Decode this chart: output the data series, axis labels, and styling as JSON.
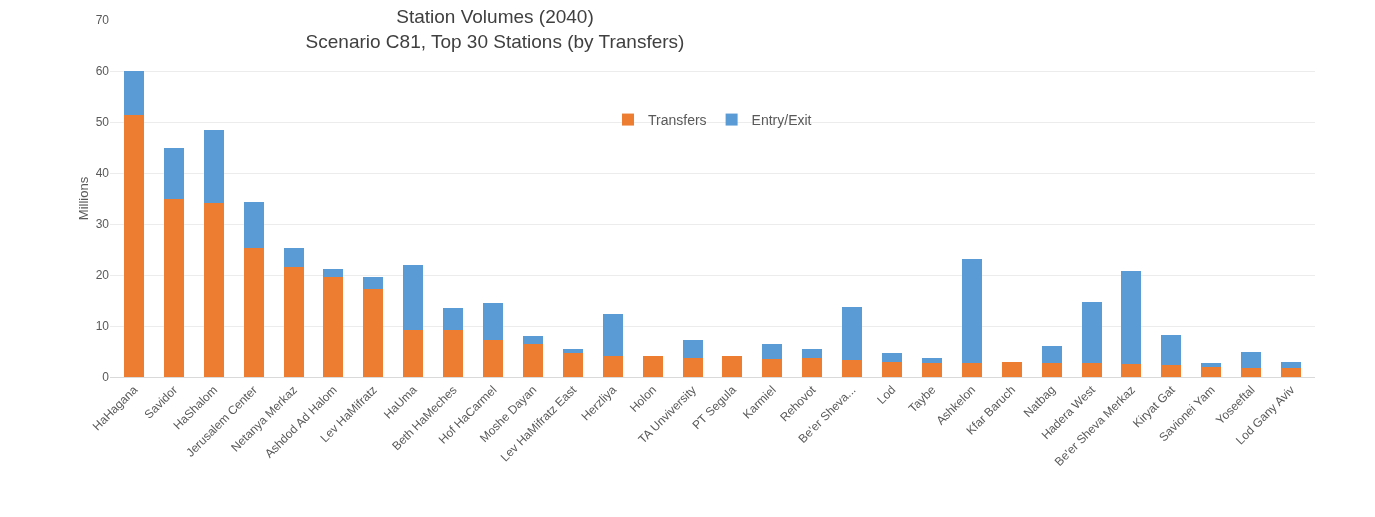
{
  "chart_data": {
    "type": "bar",
    "title": "Station Volumes (2040)",
    "subtitle": "Scenario C81, Top 30 Stations (by Transfers)",
    "ylabel": "Millions",
    "categories": [
      "HaHagana",
      "Savidor",
      "HaShalom",
      "Jerusalem Center",
      "Netanya Merkaz",
      "Ashdod Ad Halom",
      "Lev HaMifratz",
      "HaUma",
      "Beth HaMeches",
      "Hof HaCarmel",
      "Moshe Dayan",
      "Lev HaMifratz East",
      "Herzliya",
      "Holon",
      "TA Unviversity",
      "PT Segula",
      "Karmiel",
      "Rehovot",
      "Be'er Sheva...",
      "Lod",
      "Taybe",
      "Ashkelon",
      "Kfar Baruch",
      "Natbag",
      "Hadera West",
      "Be'er Sheva Merkaz",
      "Kiryat Gat",
      "Savionei Yam",
      "Yoseeftal",
      "Lod Gany Aviv"
    ],
    "series": [
      {
        "name": "Transfers",
        "color": "#ed7d31",
        "values": [
          51.3,
          35,
          34.1,
          25.2,
          21.5,
          19.6,
          17.3,
          9.2,
          9.2,
          7.3,
          6.5,
          4.8,
          4.1,
          4.1,
          3.7,
          4.1,
          3.5,
          3.7,
          3.3,
          2.9,
          2.8,
          2.8,
          2.9,
          2.8,
          2.8,
          2.6,
          2.3,
          2,
          1.8,
          1.7
        ]
      },
      {
        "name": "Entry/Exit",
        "color": "#5b9bd5",
        "values": [
          8.7,
          9.9,
          14.4,
          9.1,
          3.8,
          1.5,
          2.4,
          12.7,
          4.3,
          7.3,
          1.5,
          0.6,
          8.3,
          0,
          3.5,
          0,
          3,
          1.7,
          10.4,
          1.9,
          1,
          20.4,
          0,
          3.2,
          12,
          18.1,
          6,
          0.8,
          3.2,
          1.2
        ]
      }
    ],
    "stacked": true,
    "ylim": [
      0,
      70
    ],
    "yticks": [
      0,
      10,
      20,
      30,
      40,
      50,
      60,
      70
    ],
    "grid": "y",
    "legend": "top"
  }
}
